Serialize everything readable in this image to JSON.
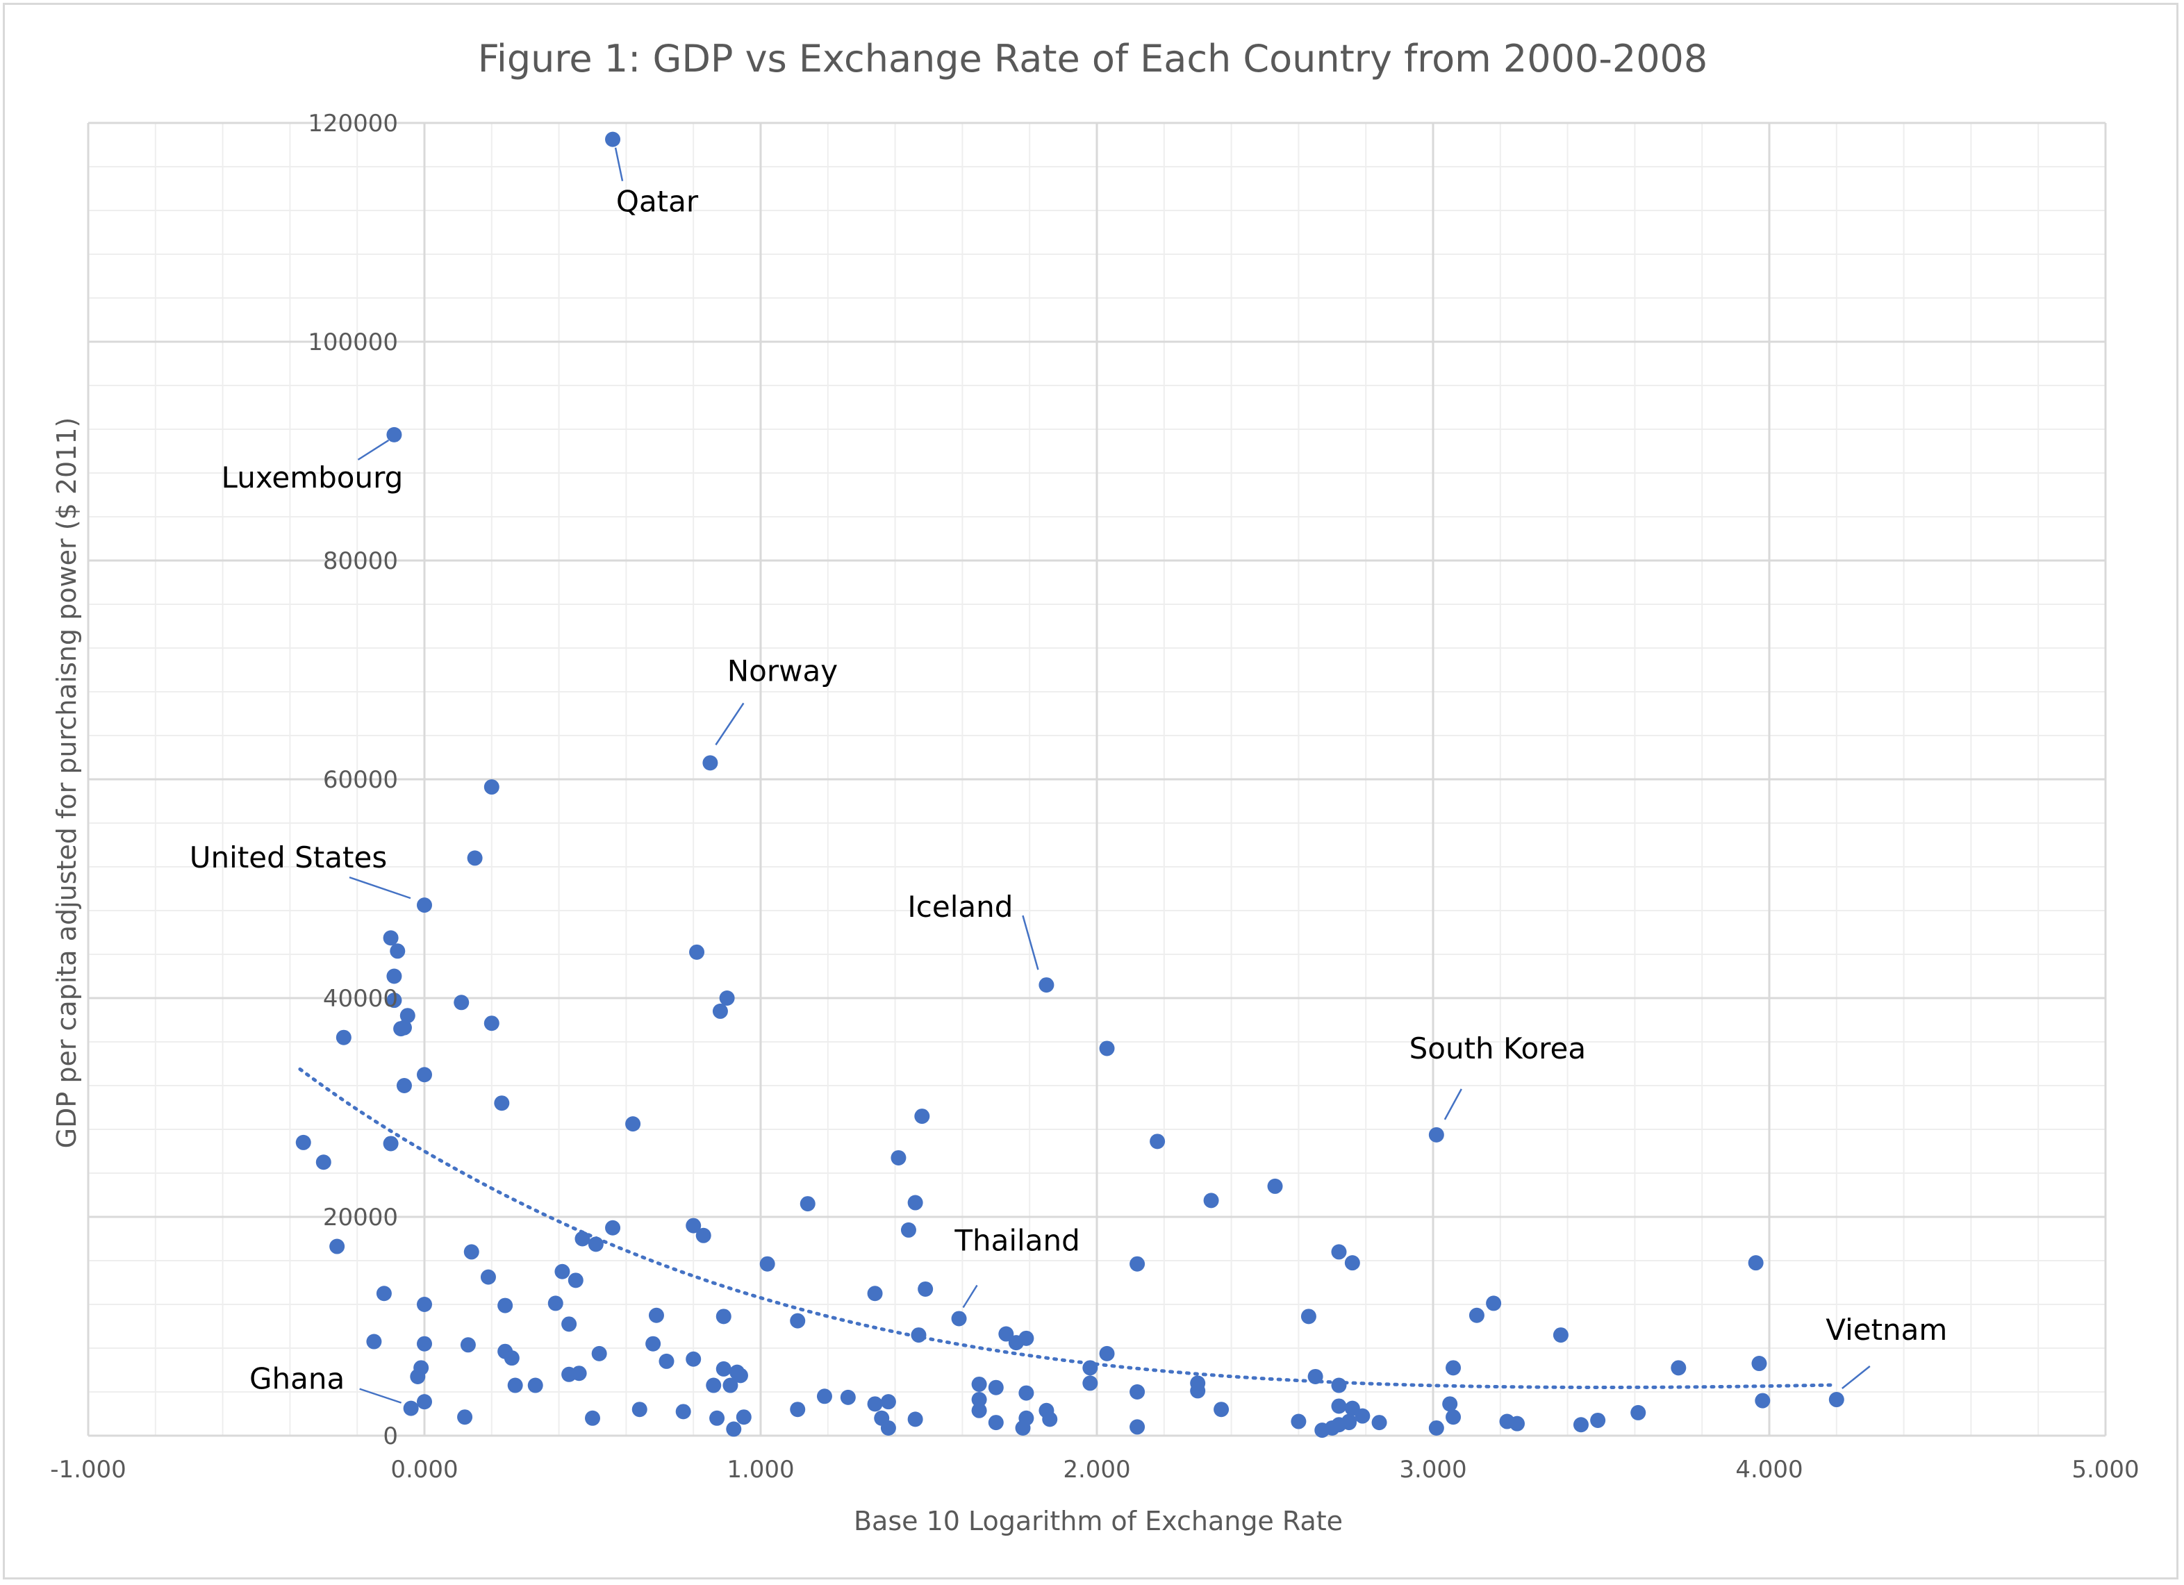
{
  "chart_data": {
    "type": "scatter",
    "title": "Figure 1: GDP vs Exchange Rate of Each Country from 2000-2008",
    "xlabel": "Base 10 Logarithm of Exchange Rate",
    "ylabel": "GDP per capita adjusted for purchaisng power ($ 2011)",
    "xlim": [
      -1.0,
      5.0
    ],
    "ylim": [
      0,
      120000
    ],
    "x_ticks": [
      "-1.000",
      "0.000",
      "1.000",
      "2.000",
      "3.000",
      "4.000",
      "5.000"
    ],
    "x_tick_values": [
      -1,
      0,
      1,
      2,
      3,
      4,
      5
    ],
    "y_ticks": [
      "0",
      "20000",
      "40000",
      "60000",
      "80000",
      "100000",
      "120000"
    ],
    "y_tick_values": [
      0,
      20000,
      40000,
      60000,
      80000,
      100000,
      120000
    ],
    "grid": "on",
    "legend": "none",
    "trendline": {
      "type": "power-decay",
      "from_x": -0.37,
      "to_x": 4.2,
      "y_at_start": 33500,
      "y_at_0": 26000,
      "y_at_end": 4500,
      "style": "dotted"
    },
    "annotations": [
      {
        "label": "Qatar",
        "x": 0.56,
        "y": 118500
      },
      {
        "label": "Luxembourg",
        "x": -0.09,
        "y": 91500
      },
      {
        "label": "Norway",
        "x": 0.85,
        "y": 61500
      },
      {
        "label": "United States",
        "x": 0.0,
        "y": 48500
      },
      {
        "label": "Iceland",
        "x": 1.85,
        "y": 41200
      },
      {
        "label": "South Korea",
        "x": 3.01,
        "y": 27500
      },
      {
        "label": "Thailand",
        "x": 1.59,
        "y": 10700
      },
      {
        "label": "Ghana",
        "x": -0.04,
        "y": 2500
      },
      {
        "label": "Vietnam",
        "x": 4.2,
        "y": 3300
      }
    ],
    "points": [
      [
        0.56,
        118500
      ],
      [
        -0.09,
        91500
      ],
      [
        0.85,
        61500
      ],
      [
        0.2,
        59300
      ],
      [
        0.15,
        52800
      ],
      [
        0.0,
        48500
      ],
      [
        -0.1,
        45500
      ],
      [
        -0.08,
        44300
      ],
      [
        0.81,
        44200
      ],
      [
        1.85,
        41200
      ],
      [
        -0.09,
        42000
      ],
      [
        -0.09,
        39800
      ],
      [
        0.9,
        40000
      ],
      [
        0.88,
        38800
      ],
      [
        0.11,
        39600
      ],
      [
        -0.05,
        38400
      ],
      [
        -0.06,
        37300
      ],
      [
        -0.07,
        37200
      ],
      [
        0.2,
        37700
      ],
      [
        -0.24,
        36400
      ],
      [
        2.03,
        35400
      ],
      [
        0.0,
        33000
      ],
      [
        -0.06,
        32000
      ],
      [
        0.23,
        30400
      ],
      [
        1.48,
        29200
      ],
      [
        0.62,
        28500
      ],
      [
        3.01,
        27500
      ],
      [
        -0.36,
        26800
      ],
      [
        -0.1,
        26700
      ],
      [
        2.18,
        26900
      ],
      [
        -0.3,
        25000
      ],
      [
        1.41,
        25400
      ],
      [
        2.53,
        22800
      ],
      [
        1.46,
        21300
      ],
      [
        1.14,
        21200
      ],
      [
        2.34,
        21500
      ],
      [
        0.8,
        19200
      ],
      [
        0.56,
        19000
      ],
      [
        0.83,
        18300
      ],
      [
        0.47,
        18000
      ],
      [
        1.44,
        18800
      ],
      [
        0.51,
        17500
      ],
      [
        -0.26,
        17300
      ],
      [
        0.14,
        16800
      ],
      [
        2.72,
        16800
      ],
      [
        1.02,
        15700
      ],
      [
        2.12,
        15700
      ],
      [
        2.76,
        15800
      ],
      [
        3.96,
        15800
      ],
      [
        0.41,
        15000
      ],
      [
        0.19,
        14500
      ],
      [
        0.45,
        14200
      ],
      [
        1.49,
        13400
      ],
      [
        1.34,
        13000
      ],
      [
        -0.12,
        13000
      ],
      [
        0.0,
        12000
      ],
      [
        0.24,
        11900
      ],
      [
        0.39,
        12100
      ],
      [
        3.18,
        12100
      ],
      [
        0.69,
        11000
      ],
      [
        0.89,
        10900
      ],
      [
        1.11,
        10500
      ],
      [
        1.59,
        10700
      ],
      [
        2.63,
        10900
      ],
      [
        3.13,
        11000
      ],
      [
        0.43,
        10200
      ],
      [
        1.47,
        9200
      ],
      [
        1.73,
        9300
      ],
      [
        1.79,
        8900
      ],
      [
        3.38,
        9200
      ],
      [
        1.76,
        8500
      ],
      [
        -0.15,
        8600
      ],
      [
        0.0,
        8400
      ],
      [
        0.13,
        8300
      ],
      [
        0.68,
        8400
      ],
      [
        0.24,
        7700
      ],
      [
        0.52,
        7500
      ],
      [
        2.03,
        7500
      ],
      [
        0.26,
        7100
      ],
      [
        0.8,
        7000
      ],
      [
        0.72,
        6800
      ],
      [
        -0.01,
        6200
      ],
      [
        1.98,
        6200
      ],
      [
        0.89,
        6100
      ],
      [
        3.06,
        6200
      ],
      [
        3.73,
        6200
      ],
      [
        3.97,
        6600
      ],
      [
        0.93,
        5800
      ],
      [
        0.94,
        5500
      ],
      [
        0.43,
        5600
      ],
      [
        0.46,
        5700
      ],
      [
        -0.02,
        5400
      ],
      [
        2.65,
        5400
      ],
      [
        0.86,
        4600
      ],
      [
        0.91,
        4600
      ],
      [
        0.27,
        4600
      ],
      [
        0.33,
        4600
      ],
      [
        1.65,
        4700
      ],
      [
        1.7,
        4400
      ],
      [
        1.98,
        4800
      ],
      [
        2.3,
        4800
      ],
      [
        2.72,
        4600
      ],
      [
        2.12,
        4000
      ],
      [
        1.79,
        3900
      ],
      [
        1.19,
        3600
      ],
      [
        1.26,
        3500
      ],
      [
        1.65,
        3300
      ],
      [
        2.3,
        4100
      ],
      [
        0.0,
        3100
      ],
      [
        1.34,
        2900
      ],
      [
        1.38,
        3100
      ],
      [
        3.05,
        2900
      ],
      [
        3.98,
        3200
      ],
      [
        4.2,
        3300
      ],
      [
        -0.04,
        2500
      ],
      [
        0.64,
        2400
      ],
      [
        0.77,
        2200
      ],
      [
        1.11,
        2400
      ],
      [
        1.65,
        2300
      ],
      [
        1.85,
        2300
      ],
      [
        2.37,
        2400
      ],
      [
        2.72,
        2700
      ],
      [
        2.76,
        2500
      ],
      [
        0.12,
        1700
      ],
      [
        0.5,
        1600
      ],
      [
        0.87,
        1600
      ],
      [
        0.95,
        1700
      ],
      [
        1.46,
        1500
      ],
      [
        1.79,
        1600
      ],
      [
        1.86,
        1500
      ],
      [
        2.6,
        1300
      ],
      [
        2.75,
        1300
      ],
      [
        2.79,
        1800
      ],
      [
        2.84,
        1200
      ],
      [
        3.06,
        1700
      ],
      [
        3.22,
        1300
      ],
      [
        3.25,
        1100
      ],
      [
        3.49,
        1400
      ],
      [
        3.61,
        2100
      ],
      [
        1.36,
        1600
      ],
      [
        1.38,
        700
      ],
      [
        0.92,
        600
      ],
      [
        1.7,
        1200
      ],
      [
        1.78,
        700
      ],
      [
        2.12,
        800
      ],
      [
        2.7,
        700
      ],
      [
        2.72,
        1000
      ],
      [
        2.67,
        500
      ],
      [
        2.75,
        1200
      ],
      [
        3.01,
        700
      ],
      [
        3.44,
        1000
      ]
    ]
  }
}
